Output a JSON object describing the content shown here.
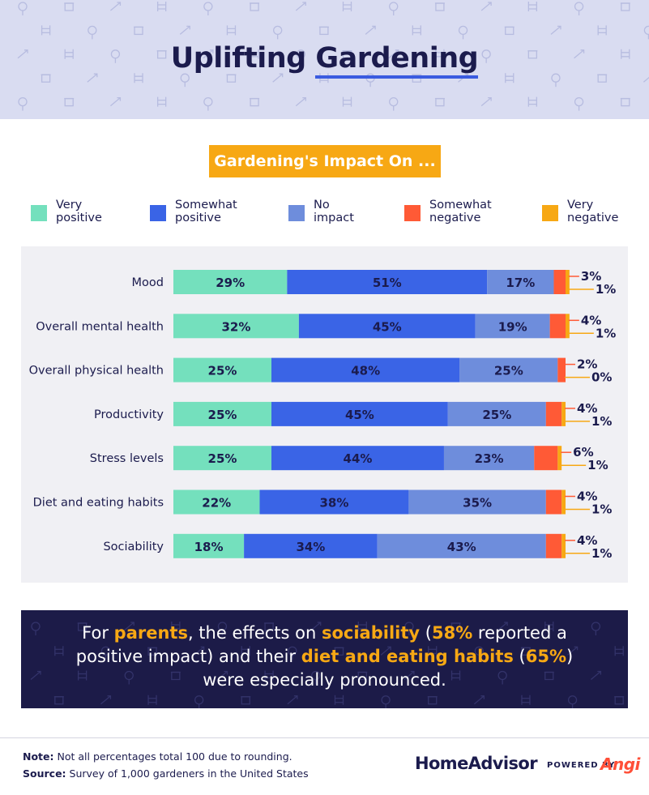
{
  "header": {
    "title_part1": "Uplifting",
    "title_part2": "Gardening"
  },
  "subtitle": "Gardening's Impact On ...",
  "legend": [
    {
      "label_line1": "Very",
      "label_line2": "positive",
      "color": "#74e0bd"
    },
    {
      "label_line1": "Somewhat",
      "label_line2": "positive",
      "color": "#3a64e6"
    },
    {
      "label_line1": "No",
      "label_line2": "impact",
      "color": "#6e8ddc"
    },
    {
      "label_line1": "Somewhat",
      "label_line2": "negative",
      "color": "#ff5a36"
    },
    {
      "label_line1": "Very",
      "label_line2": "negative",
      "color": "#f7a814"
    }
  ],
  "chart_data": {
    "type": "bar",
    "orientation": "horizontal",
    "stacked": true,
    "unit": "%",
    "categories": [
      "Mood",
      "Overall mental health",
      "Overall physical health",
      "Productivity",
      "Stress levels",
      "Diet and eating habits",
      "Sociability"
    ],
    "series": [
      {
        "name": "Very positive",
        "color": "#74e0bd",
        "values": [
          29,
          32,
          25,
          25,
          25,
          22,
          18
        ]
      },
      {
        "name": "Somewhat positive",
        "color": "#3a64e6",
        "values": [
          51,
          45,
          48,
          45,
          44,
          38,
          34
        ]
      },
      {
        "name": "No impact",
        "color": "#6e8ddc",
        "values": [
          17,
          19,
          25,
          25,
          23,
          35,
          43
        ]
      },
      {
        "name": "Somewhat negative",
        "color": "#ff5a36",
        "values": [
          3,
          4,
          2,
          4,
          6,
          4,
          4
        ]
      },
      {
        "name": "Very negative",
        "color": "#f7a814",
        "values": [
          1,
          1,
          0,
          1,
          1,
          1,
          1
        ]
      }
    ]
  },
  "callout": {
    "t1": "For ",
    "h1": "parents",
    "t2": ", the effects on ",
    "h2": "sociability",
    "t3": " (",
    "h3": "58%",
    "t4": " reported a positive impact) and their ",
    "h4": "diet and eating habits",
    "t5": " (",
    "h5": "65%",
    "t6": ") were especially pronounced."
  },
  "footer": {
    "note_label": "Note:",
    "note_text": " Not all percentages total 100 due to rounding.",
    "source_label": "Source:",
    "source_text": " Survey of 1,000 gardeners in the United States",
    "brand_main": "HomeAdvisor",
    "brand_powered": "POWERED BY",
    "brand_angi": "Angi"
  }
}
